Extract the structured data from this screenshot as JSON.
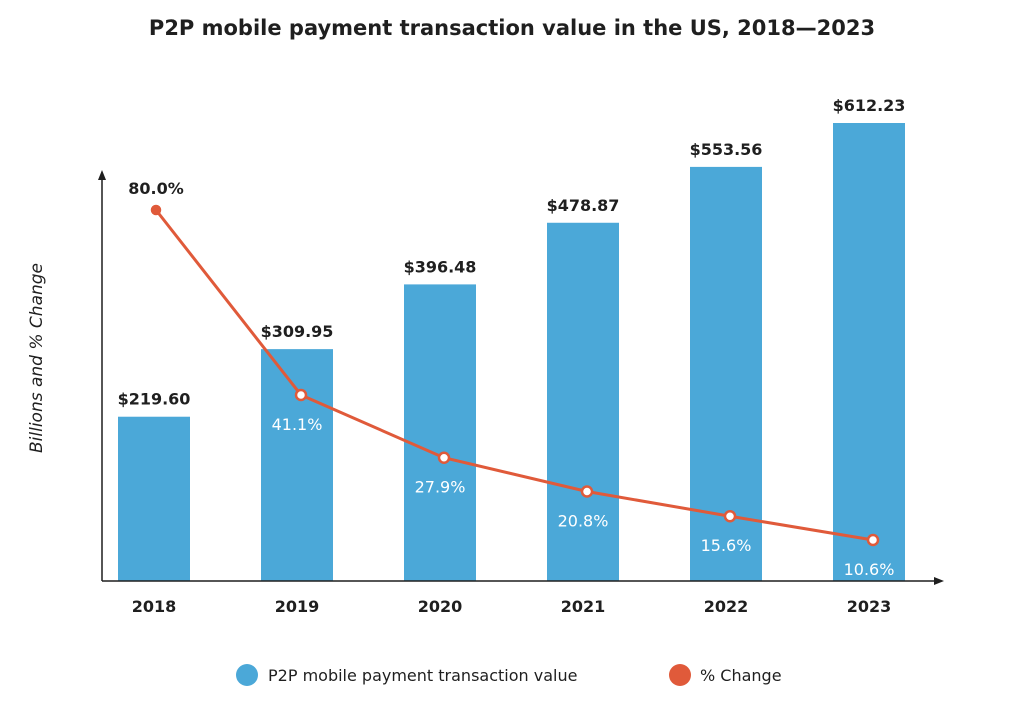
{
  "chart_data": {
    "type": "bar",
    "title": "P2P mobile payment transaction value in the US, 2018—2023",
    "xlabel": "",
    "ylabel": "Billions and % Change",
    "categories": [
      "2018",
      "2019",
      "2020",
      "2021",
      "2022",
      "2023"
    ],
    "series": [
      {
        "name": "P2P mobile payment transaction value",
        "type": "bar",
        "values": [
          219.6,
          309.95,
          396.48,
          478.87,
          553.56,
          612.23
        ],
        "labels": [
          "$219.60",
          "$309.95",
          "$396.48",
          "$478.87",
          "$553.56",
          "$612.23"
        ],
        "color": "#4ba8d8"
      },
      {
        "name": "% Change",
        "type": "line",
        "values": [
          80.0,
          41.1,
          27.9,
          20.8,
          15.6,
          10.6
        ],
        "labels": [
          "80.0%",
          "41.1%",
          "27.9%",
          "20.8%",
          "15.6%",
          "10.6%"
        ],
        "color": "#e05a3a"
      }
    ],
    "grid": false,
    "legend_position": "bottom"
  }
}
